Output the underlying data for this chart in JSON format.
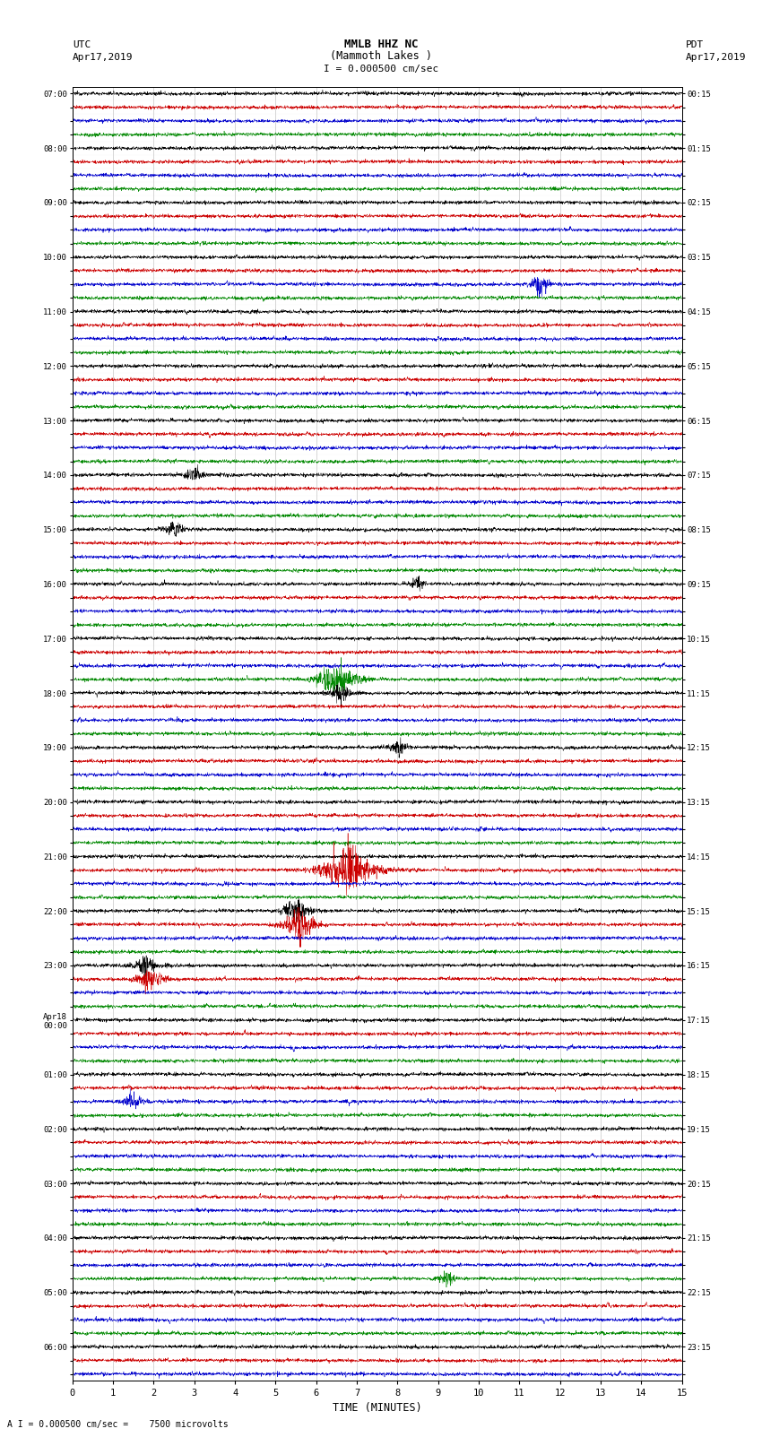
{
  "title_line1": "MMLB HHZ NC",
  "title_line2": "(Mammoth Lakes )",
  "title_line3": "I = 0.000500 cm/sec",
  "left_label1": "UTC",
  "left_label2": "Apr17,2019",
  "right_label1": "PDT",
  "right_label2": "Apr17,2019",
  "xlabel": "TIME (MINUTES)",
  "footer": "A I = 0.000500 cm/sec =    7500 microvolts",
  "utc_labels": [
    "07:00",
    "",
    "",
    "",
    "08:00",
    "",
    "",
    "",
    "09:00",
    "",
    "",
    "",
    "10:00",
    "",
    "",
    "",
    "11:00",
    "",
    "",
    "",
    "12:00",
    "",
    "",
    "",
    "13:00",
    "",
    "",
    "",
    "14:00",
    "",
    "",
    "",
    "15:00",
    "",
    "",
    "",
    "16:00",
    "",
    "",
    "",
    "17:00",
    "",
    "",
    "",
    "18:00",
    "",
    "",
    "",
    "19:00",
    "",
    "",
    "",
    "20:00",
    "",
    "",
    "",
    "21:00",
    "",
    "",
    "",
    "22:00",
    "",
    "",
    "",
    "23:00",
    "",
    "",
    "",
    "Apr18\n00:00",
    "",
    "",
    "",
    "01:00",
    "",
    "",
    "",
    "02:00",
    "",
    "",
    "",
    "03:00",
    "",
    "",
    "",
    "04:00",
    "",
    "",
    "",
    "05:00",
    "",
    "",
    "",
    "06:00",
    "",
    ""
  ],
  "pdt_labels": [
    "00:15",
    "",
    "",
    "",
    "01:15",
    "",
    "",
    "",
    "02:15",
    "",
    "",
    "",
    "03:15",
    "",
    "",
    "",
    "04:15",
    "",
    "",
    "",
    "05:15",
    "",
    "",
    "",
    "06:15",
    "",
    "",
    "",
    "07:15",
    "",
    "",
    "",
    "08:15",
    "",
    "",
    "",
    "09:15",
    "",
    "",
    "",
    "10:15",
    "",
    "",
    "",
    "11:15",
    "",
    "",
    "",
    "12:15",
    "",
    "",
    "",
    "13:15",
    "",
    "",
    "",
    "14:15",
    "",
    "",
    "",
    "15:15",
    "",
    "",
    "",
    "16:15",
    "",
    "",
    "",
    "17:15",
    "",
    "",
    "",
    "18:15",
    "",
    "",
    "",
    "19:15",
    "",
    "",
    "",
    "20:15",
    "",
    "",
    "",
    "21:15",
    "",
    "",
    "",
    "22:15",
    "",
    "",
    "",
    "23:15",
    "",
    ""
  ],
  "num_rows": 95,
  "colors_cycle": [
    "#000000",
    "#cc0000",
    "#0000cc",
    "#008800"
  ],
  "bg_color": "#ffffff",
  "noise_amplitude": 0.06,
  "grid_color": "#999999",
  "grid_lw": 0.4
}
